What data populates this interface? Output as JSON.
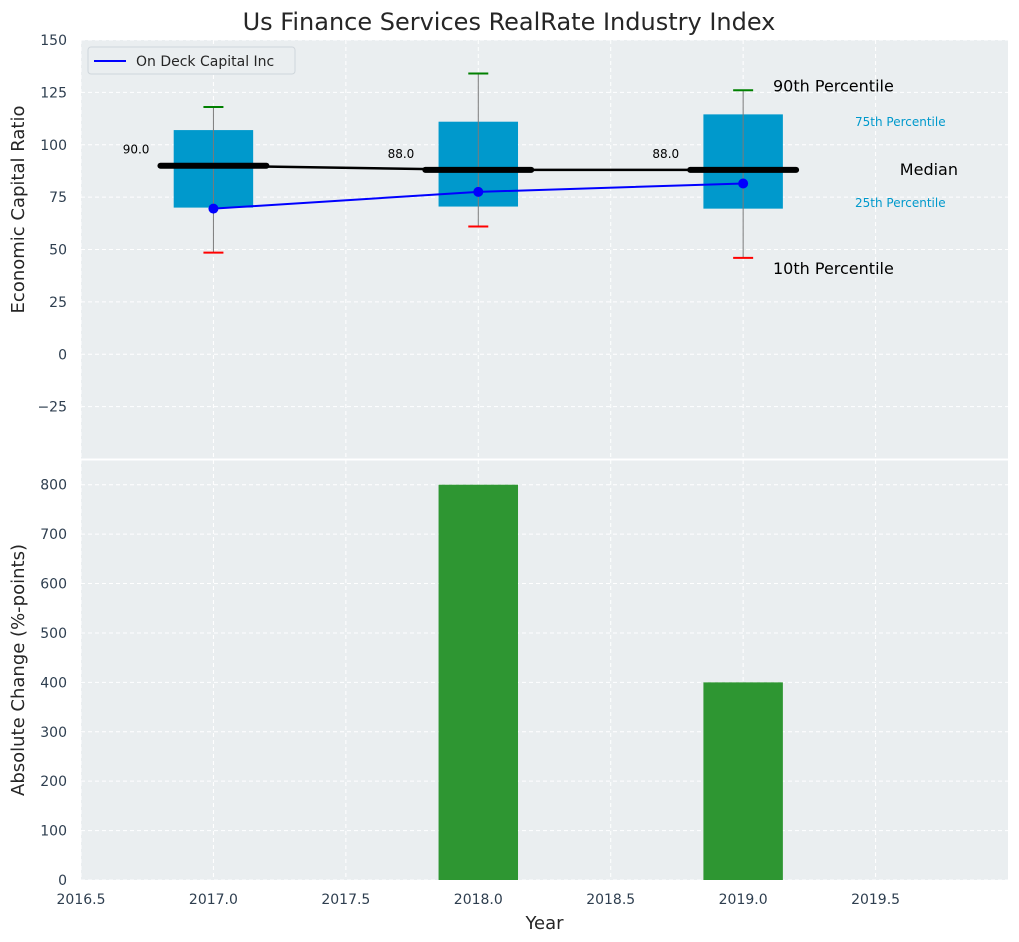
{
  "chart_data": [
    {
      "type": "box",
      "title": "Us Finance Services RealRate Industry Index",
      "ylabel": "Economic Capital Ratio",
      "ylim": [
        -50,
        150
      ],
      "yticks": [
        -25,
        0,
        25,
        50,
        75,
        100,
        125,
        150
      ],
      "ytick_labels": [
        "−25",
        "0",
        "25",
        "50",
        "75",
        "100",
        "125",
        "150"
      ],
      "xlim": [
        2016.5,
        2020.0
      ],
      "grid": true,
      "boxes": [
        {
          "x": 2017,
          "p10": 48.5,
          "p25": 70,
          "median": 90,
          "p75": 107,
          "p90": 118
        },
        {
          "x": 2018,
          "p10": 61,
          "p25": 70.5,
          "median": 88,
          "p75": 111,
          "p90": 134
        },
        {
          "x": 2019,
          "p10": 46,
          "p25": 69.5,
          "median": 88,
          "p75": 114.5,
          "p90": 126
        }
      ],
      "median_labels": [
        "90.0",
        "88.0",
        "88.0"
      ],
      "series": [
        {
          "name": "On Deck Capital Inc",
          "x": [
            2017,
            2018,
            2019
          ],
          "values": [
            69.5,
            77.5,
            81.5
          ]
        }
      ],
      "legend": {
        "position": "top-left",
        "entries": [
          "On Deck Capital Inc"
        ]
      },
      "annotations": {
        "p90": "90th Percentile",
        "p75": "75th Percentile",
        "median": "Median",
        "p25": "25th Percentile",
        "p10": "10th Percentile"
      },
      "colors": {
        "box": "#0099cc",
        "median": "#000000",
        "series": "#0000ff",
        "cap_high": "#008000",
        "cap_low": "#ff0000",
        "p_label": "#0099cc"
      }
    },
    {
      "type": "bar",
      "xlabel": "Year",
      "ylabel": "Absolute Change (%-points)",
      "ylim": [
        0,
        850
      ],
      "yticks": [
        0,
        100,
        200,
        300,
        400,
        500,
        600,
        700,
        800
      ],
      "xlim": [
        2016.5,
        2020.0
      ],
      "xticks": [
        2016.5,
        2017.0,
        2017.5,
        2018.0,
        2018.5,
        2019.0,
        2019.5
      ],
      "xtick_labels": [
        "2016.5",
        "2017.0",
        "2017.5",
        "2018.0",
        "2018.5",
        "2019.0",
        "2019.5"
      ],
      "grid": true,
      "x": [
        2018,
        2019
      ],
      "values": [
        800,
        400
      ],
      "colors": {
        "bar": "#2e9632"
      }
    }
  ]
}
